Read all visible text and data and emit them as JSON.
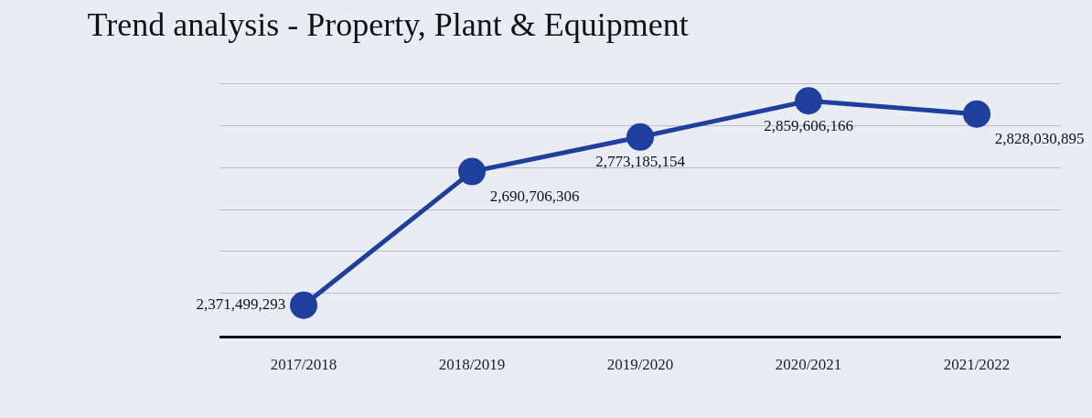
{
  "chart_data": {
    "type": "line",
    "title": "Trend analysis - Property, Plant & Equipment",
    "categories": [
      "2017/2018",
      "2018/2019",
      "2019/2020",
      "2020/2021",
      "2021/2022"
    ],
    "series": [
      {
        "color": "#1f3f9f",
        "values": [
          2371499293,
          2690706306,
          2773185154,
          2859606166,
          2828030895
        ],
        "value_labels": [
          "2,371,499,293",
          "2,690,706,306",
          "2,773,185,154",
          "2,859,606,166",
          "2,828,030,895"
        ]
      }
    ],
    "grid": "y",
    "marker": "circle",
    "line_style": "solid",
    "tick_labels": "x"
  }
}
